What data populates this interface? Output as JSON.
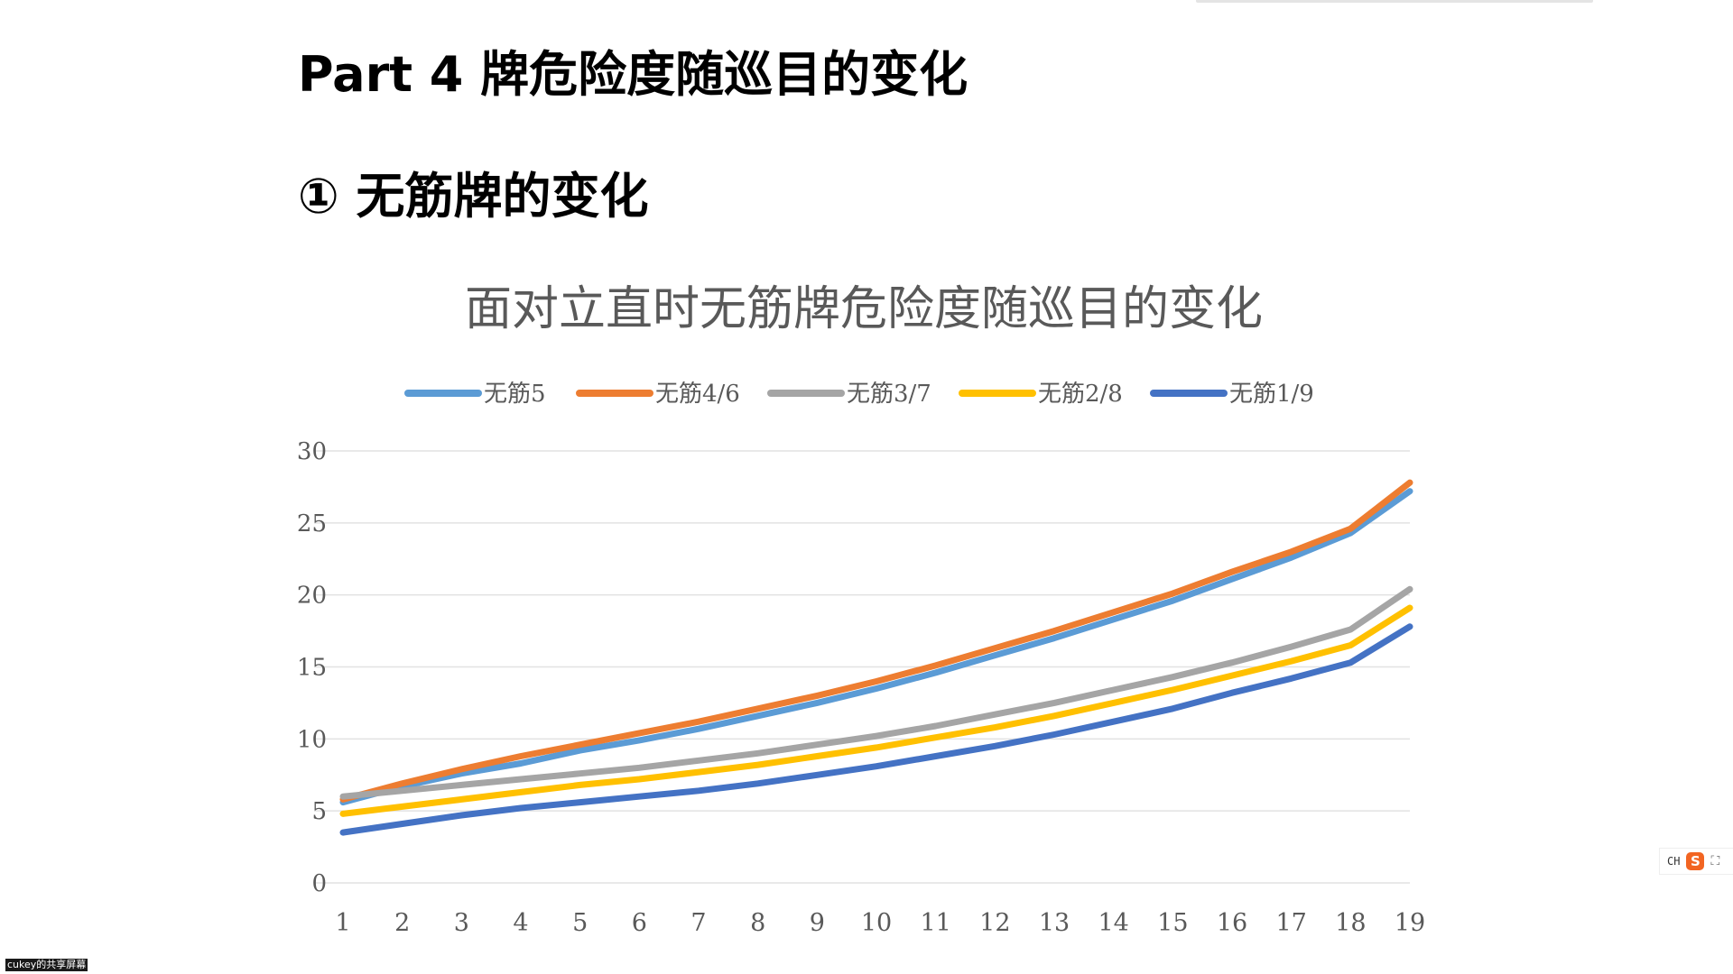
{
  "slide": {
    "title": "Part 4 牌危险度随巡目的变化",
    "section": "① 无筋牌的变化"
  },
  "chart_data": {
    "type": "line",
    "title": "面对立直时无筋牌危险度随巡目的变化",
    "xlabel": "",
    "ylabel": "",
    "ylim": [
      0,
      30
    ],
    "yticks": [
      0,
      5,
      10,
      15,
      20,
      25,
      30
    ],
    "grid": true,
    "legend": "top",
    "x": [
      1,
      2,
      3,
      4,
      5,
      6,
      7,
      8,
      9,
      10,
      11,
      12,
      13,
      14,
      15,
      16,
      17,
      18,
      19
    ],
    "series": [
      {
        "name": "无筋5",
        "color": "#5b9bd5",
        "values": [
          5.6,
          6.7,
          7.6,
          8.3,
          9.2,
          9.9,
          10.7,
          11.6,
          12.5,
          13.5,
          14.6,
          15.8,
          17.0,
          18.3,
          19.6,
          21.1,
          22.6,
          24.3,
          27.2
        ]
      },
      {
        "name": "无筋4/6",
        "color": "#ed7d31",
        "values": [
          5.8,
          6.9,
          7.9,
          8.8,
          9.6,
          10.4,
          11.2,
          12.1,
          13.0,
          14.0,
          15.1,
          16.3,
          17.5,
          18.8,
          20.1,
          21.6,
          23.0,
          24.6,
          27.8
        ]
      },
      {
        "name": "无筋3/7",
        "color": "#a5a5a5",
        "values": [
          6.0,
          6.4,
          6.8,
          7.2,
          7.6,
          8.0,
          8.5,
          9.0,
          9.6,
          10.2,
          10.9,
          11.7,
          12.5,
          13.4,
          14.3,
          15.3,
          16.4,
          17.6,
          20.4
        ]
      },
      {
        "name": "无筋2/8",
        "color": "#ffc000",
        "values": [
          4.8,
          5.3,
          5.8,
          6.3,
          6.8,
          7.2,
          7.7,
          8.2,
          8.8,
          9.4,
          10.1,
          10.8,
          11.6,
          12.5,
          13.4,
          14.4,
          15.4,
          16.5,
          19.1
        ]
      },
      {
        "name": "无筋1/9",
        "color": "#4472c4",
        "values": [
          3.5,
          4.1,
          4.7,
          5.2,
          5.6,
          6.0,
          6.4,
          6.9,
          7.5,
          8.1,
          8.8,
          9.5,
          10.3,
          11.2,
          12.1,
          13.2,
          14.2,
          15.3,
          17.8
        ]
      }
    ]
  },
  "overlay": {
    "share_label": "cukey的共享屏幕",
    "ime_lang": "CH",
    "ime_logo": "S",
    "ime_expand": "⛶"
  }
}
